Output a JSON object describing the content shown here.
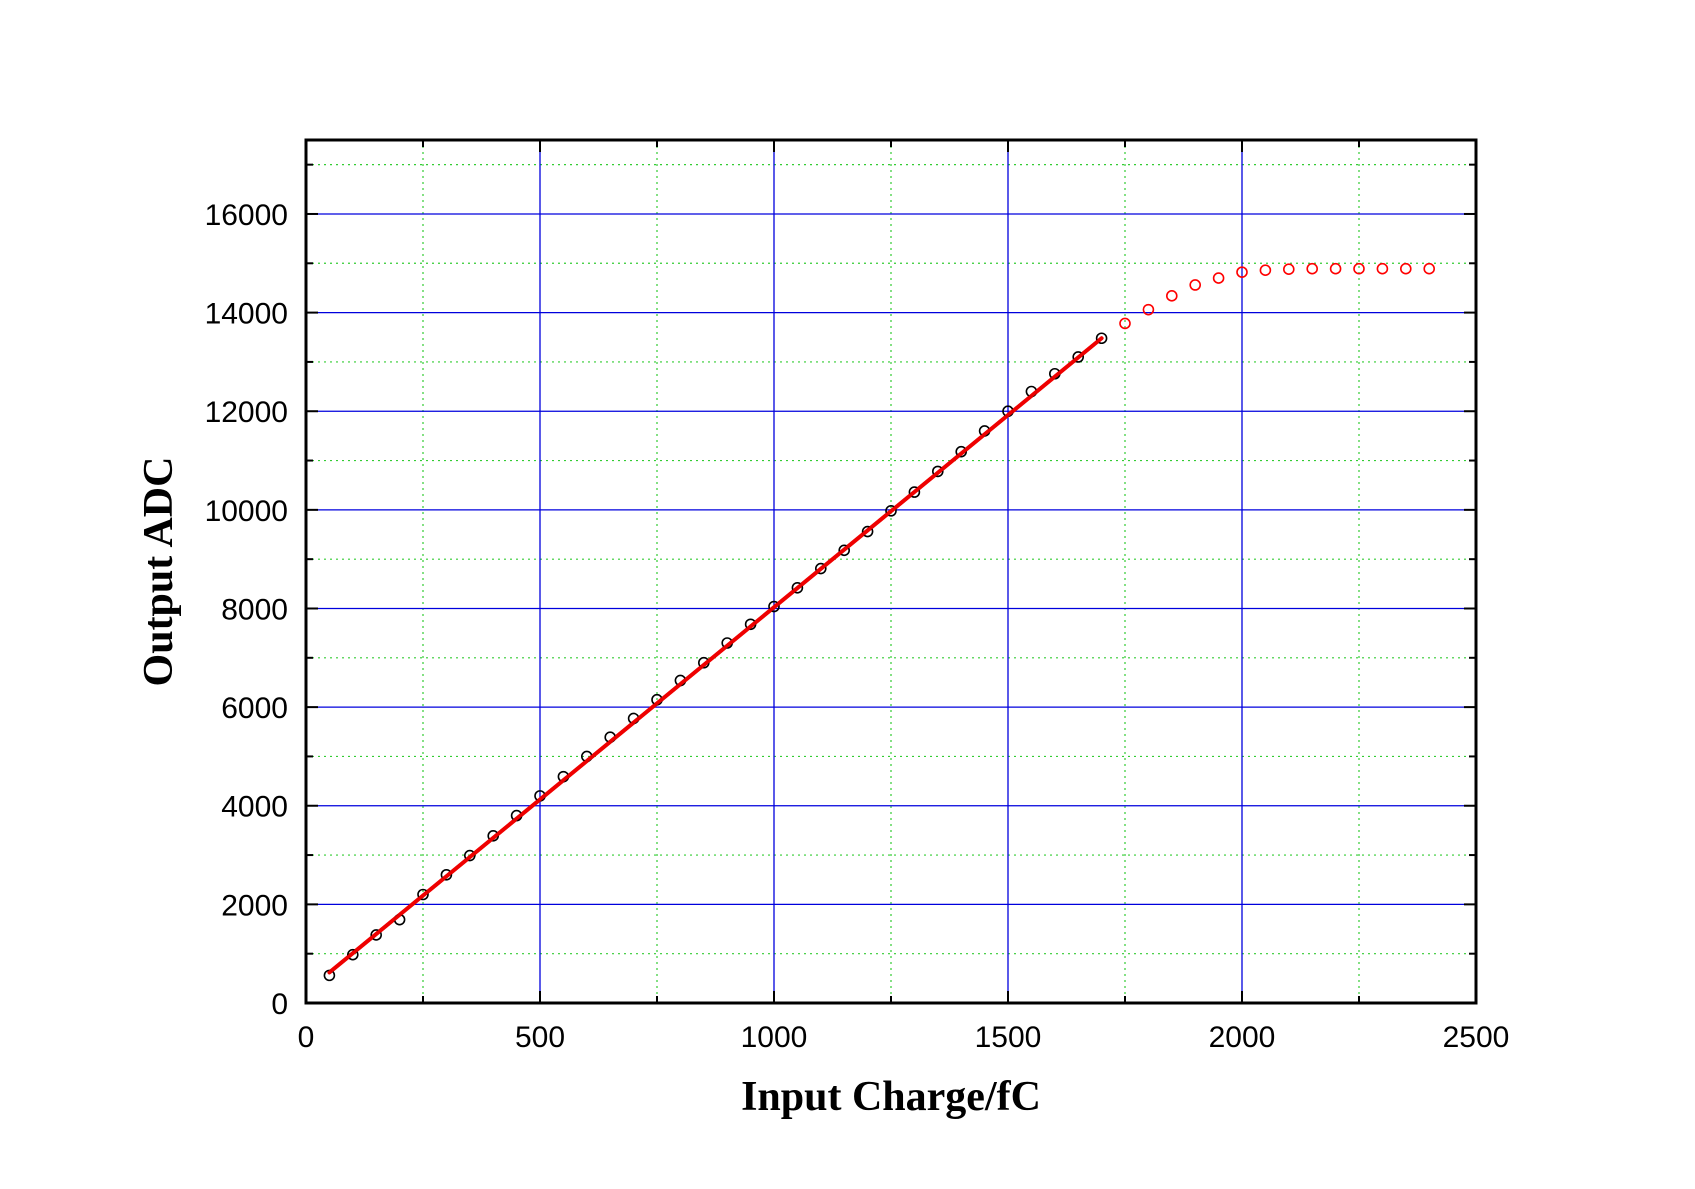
{
  "chart_data": {
    "type": "scatter",
    "title": "",
    "xlabel": "Input Charge/fC",
    "ylabel": "Output ADC",
    "xlim": [
      0,
      2500
    ],
    "ylim": [
      0,
      17500
    ],
    "x_ticks": [
      "0",
      "500",
      "1000",
      "1500",
      "2000",
      "2500"
    ],
    "y_ticks": [
      "0",
      "2000",
      "4000",
      "6000",
      "8000",
      "10000",
      "12000",
      "14000",
      "16000"
    ],
    "grid": {
      "major": true,
      "major_color": "#0000dd",
      "minor": true,
      "minor_color": "#33cc33"
    },
    "series": [
      {
        "type": "scatter",
        "marker": "open-circle",
        "color": "#000000",
        "points": [
          [
            50,
            560
          ],
          [
            100,
            980
          ],
          [
            150,
            1380
          ],
          [
            200,
            1690
          ],
          [
            250,
            2200
          ],
          [
            300,
            2600
          ],
          [
            350,
            2990
          ],
          [
            400,
            3390
          ],
          [
            450,
            3800
          ],
          [
            500,
            4200
          ],
          [
            550,
            4590
          ],
          [
            600,
            5000
          ],
          [
            650,
            5390
          ],
          [
            700,
            5770
          ],
          [
            750,
            6150
          ],
          [
            800,
            6540
          ],
          [
            850,
            6900
          ],
          [
            900,
            7300
          ],
          [
            950,
            7680
          ],
          [
            1000,
            8040
          ],
          [
            1050,
            8420
          ],
          [
            1100,
            8810
          ],
          [
            1150,
            9180
          ],
          [
            1200,
            9560
          ],
          [
            1250,
            9980
          ],
          [
            1300,
            10360
          ],
          [
            1350,
            10780
          ],
          [
            1400,
            11180
          ],
          [
            1450,
            11600
          ],
          [
            1500,
            12000
          ],
          [
            1550,
            12400
          ],
          [
            1600,
            12760
          ],
          [
            1650,
            13100
          ],
          [
            1700,
            13480
          ]
        ]
      },
      {
        "type": "scatter",
        "marker": "open-circle",
        "color": "#ff0000",
        "points": [
          [
            1750,
            13780
          ],
          [
            1800,
            14060
          ],
          [
            1850,
            14340
          ],
          [
            1900,
            14560
          ],
          [
            1950,
            14700
          ],
          [
            2000,
            14820
          ],
          [
            2050,
            14860
          ],
          [
            2100,
            14880
          ],
          [
            2150,
            14890
          ],
          [
            2200,
            14890
          ],
          [
            2250,
            14890
          ],
          [
            2300,
            14890
          ],
          [
            2350,
            14890
          ],
          [
            2400,
            14890
          ]
        ]
      },
      {
        "type": "line",
        "color": "#ee0000",
        "points": [
          [
            50,
            620
          ],
          [
            1700,
            13480
          ]
        ]
      }
    ]
  }
}
